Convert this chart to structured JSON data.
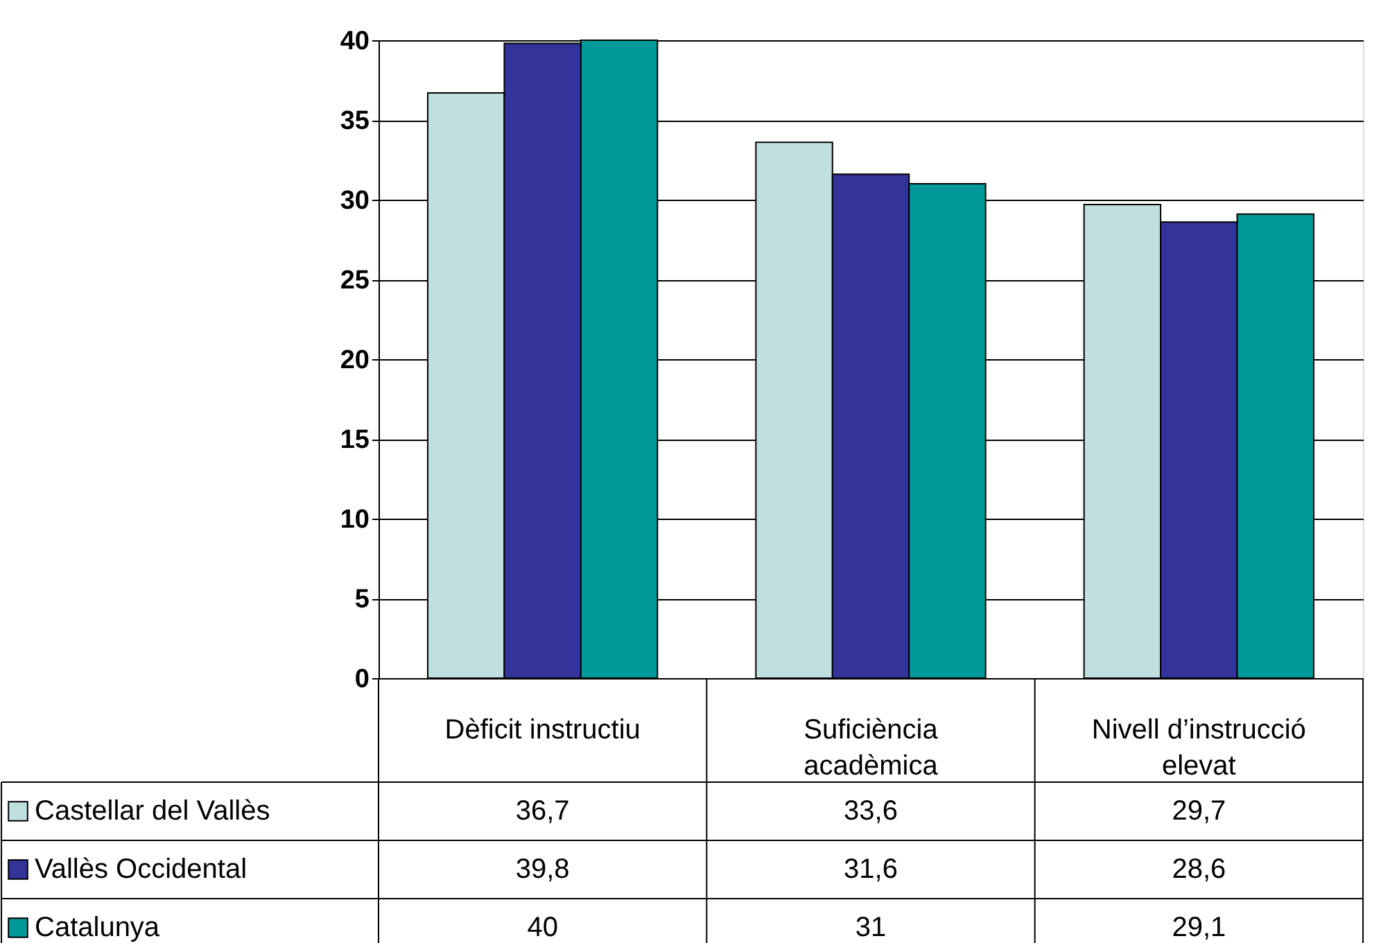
{
  "chart_data": {
    "type": "bar",
    "categories": [
      "Dèficit instructiu",
      "Suficiència acadèmica",
      "Nivell d’instrucció elevat"
    ],
    "series": [
      {
        "name": "Castellar del Vallès",
        "color": "#c0e0e0",
        "values": [
          36.7,
          33.6,
          29.7
        ],
        "value_labels": [
          "36,7",
          "33,6",
          "29,7"
        ]
      },
      {
        "name": "Vallès Occidental",
        "color": "#333399",
        "values": [
          39.8,
          31.6,
          28.6
        ],
        "value_labels": [
          "39,8",
          "31,6",
          "28,6"
        ]
      },
      {
        "name": "Catalunya",
        "color": "#009999",
        "values": [
          40,
          31,
          29.1
        ],
        "value_labels": [
          "40",
          "31",
          "29,1"
        ]
      }
    ],
    "ylim": [
      0,
      40
    ],
    "yticks": [
      0,
      5,
      10,
      15,
      20,
      25,
      30,
      35,
      40
    ],
    "grid": "y",
    "legend": "bottom left"
  }
}
